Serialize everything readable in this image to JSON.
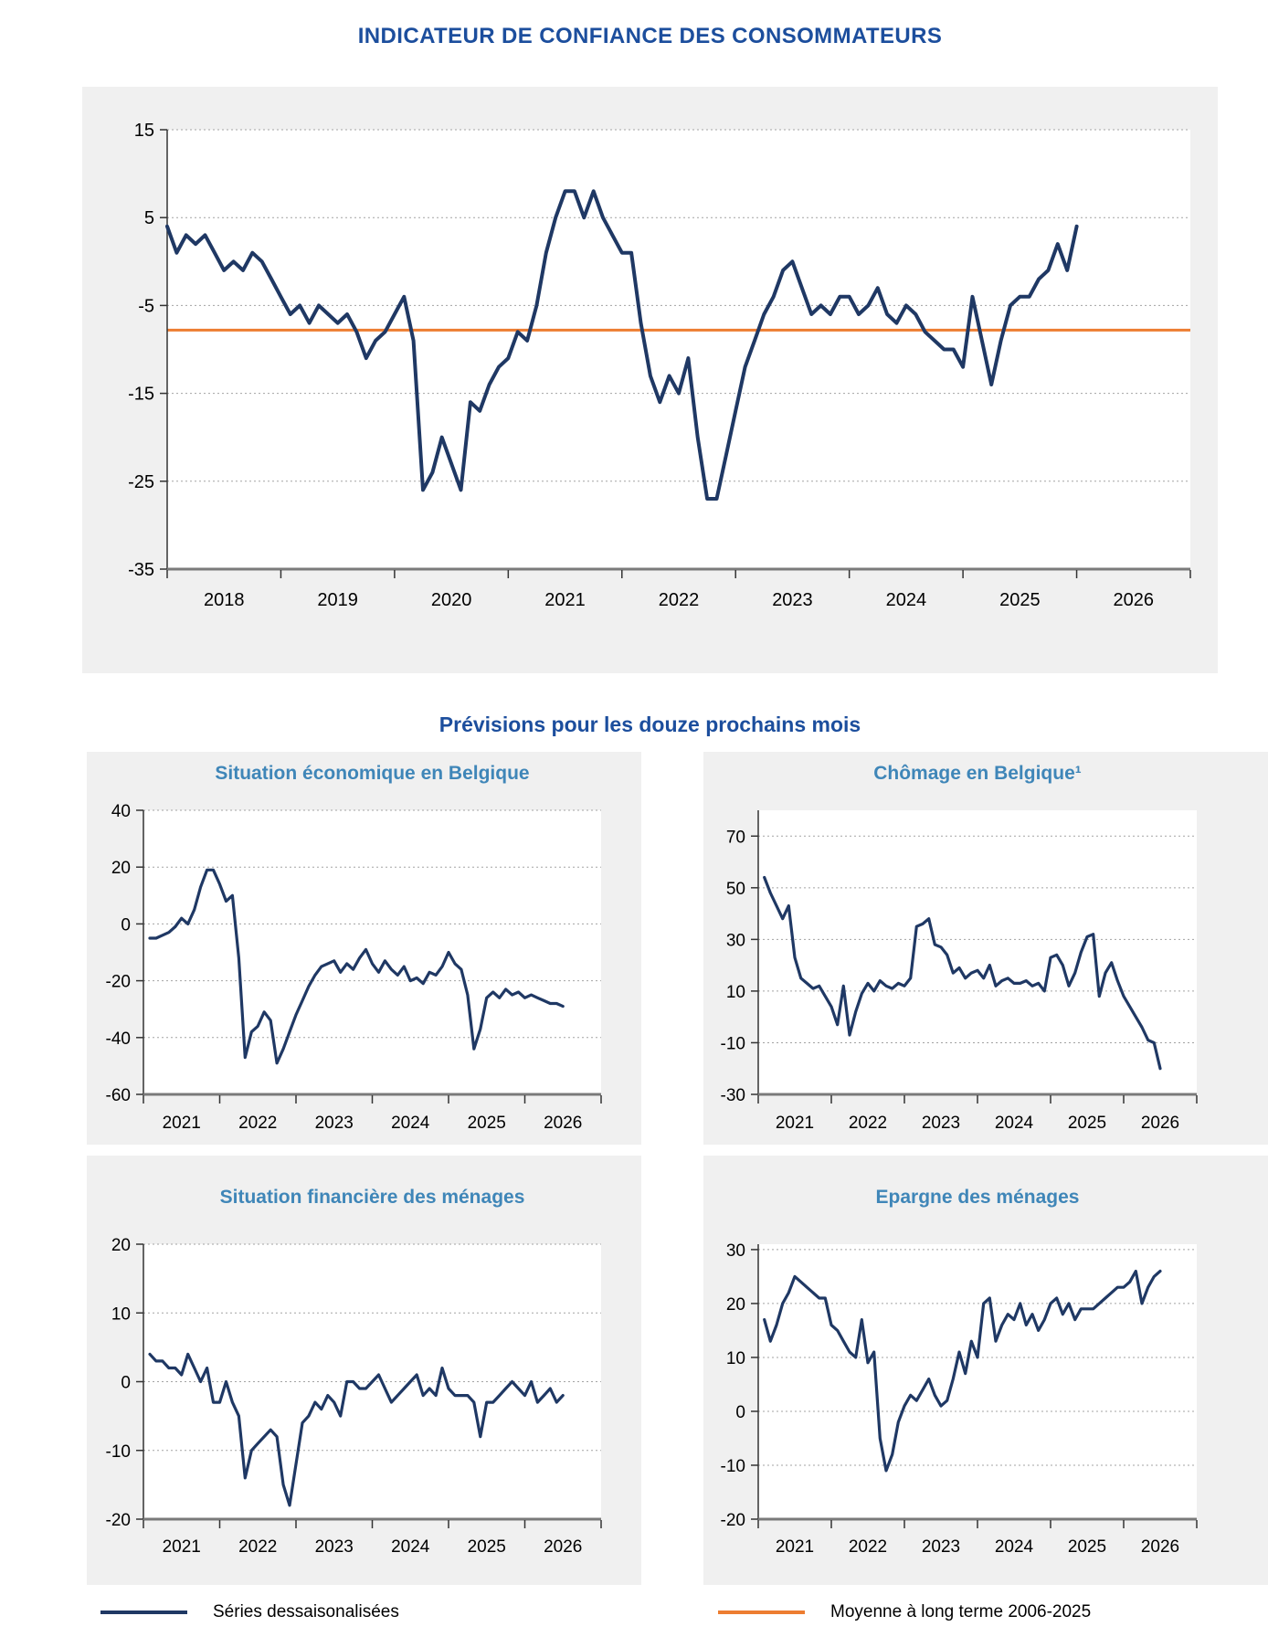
{
  "title": "INDICATEUR DE CONFIANCE DES CONSOMMATEURS",
  "subtitle": "Prévisions pour les douze prochains mois",
  "legend": {
    "series_label": "Séries dessaisonalisées",
    "average_label": "Moyenne à long terme 2006-2025"
  },
  "colors": {
    "series": "#1f3864",
    "average": "#ed7d31",
    "title_blue": "#1c4e9d",
    "subchart_title_blue": "#3f86b8",
    "panel_bg": "#f0f0f0",
    "grid": "#a3a3a3",
    "axis": "#7a7a7a",
    "tick": "#333333",
    "text": "#000000"
  },
  "chart_data": [
    {
      "id": "main",
      "type": "line",
      "title": "INDICATEUR DE CONFIANCE DES CONSOMMATEURS",
      "x_domain": [
        2018,
        2027
      ],
      "y_domain": [
        -35,
        15
      ],
      "y_ticks": [
        15,
        5,
        -5,
        -15,
        -25,
        -35
      ],
      "x_tick_positions": [
        2018,
        2019,
        2020,
        2021,
        2022,
        2023,
        2024,
        2025,
        2026,
        2027
      ],
      "x_label_positions": [
        2018.5,
        2019.5,
        2020.5,
        2021.5,
        2022.5,
        2023.5,
        2024.5,
        2025.5,
        2026.5
      ],
      "x_labels": [
        "2018",
        "2019",
        "2020",
        "2021",
        "2022",
        "2023",
        "2024",
        "2025",
        "2026"
      ],
      "grid_on": true,
      "legend_position": "bottom",
      "average_line": -7.8,
      "x_start": 2018.0,
      "x_step": 0.0833333,
      "values": [
        4,
        1,
        3,
        2,
        3,
        1,
        -1,
        0,
        -1,
        1,
        0,
        -2,
        -4,
        -6,
        -5,
        -7,
        -5,
        -6,
        -7,
        -6,
        -8,
        -11,
        -9,
        -8,
        -6,
        -4,
        -9,
        -26,
        -24,
        -20,
        -23,
        -26,
        -16,
        -17,
        -14,
        -12,
        -11,
        -8,
        -9,
        -5,
        1,
        5,
        8,
        8,
        5,
        8,
        5,
        3,
        1,
        1,
        -7,
        -13,
        -16,
        -13,
        -15,
        -11,
        -20,
        -27,
        -27,
        -22,
        -17,
        -12,
        -9,
        -6,
        -4,
        -1,
        0,
        -3,
        -6,
        -5,
        -6,
        -4,
        -4,
        -6,
        -5,
        -3,
        -6,
        -7,
        -5,
        -6,
        -8,
        -9,
        -10,
        -10,
        -12,
        -4,
        -9,
        -14,
        -9,
        -5,
        -4,
        -4,
        -2,
        -1,
        2,
        -1,
        4
      ]
    },
    {
      "id": "eco",
      "type": "line",
      "title": "Situation économique en Belgique",
      "x_domain": [
        2020.5,
        2026.5
      ],
      "y_domain": [
        -60,
        40
      ],
      "y_ticks": [
        40,
        20,
        0,
        -20,
        -40,
        -60
      ],
      "x_tick_positions": [
        2020.5,
        2021.5,
        2022.5,
        2023.5,
        2024.5,
        2025.5,
        2026.5
      ],
      "x_label_positions": [
        2021,
        2022,
        2023,
        2024,
        2025,
        2026
      ],
      "x_labels": [
        "2021",
        "2022",
        "2023",
        "2024",
        "2025",
        "2026"
      ],
      "grid_on": true,
      "x_start": 2020.5833,
      "x_step": 0.0833333,
      "values": [
        -5,
        -5,
        -4,
        -3,
        -1,
        2,
        0,
        5,
        13,
        19,
        19,
        14,
        8,
        10,
        -12,
        -47,
        -38,
        -36,
        -31,
        -34,
        -49,
        -44,
        -38,
        -32,
        -27,
        -22,
        -18,
        -15,
        -14,
        -13,
        -17,
        -14,
        -16,
        -12,
        -9,
        -14,
        -17,
        -13,
        -16,
        -18,
        -15,
        -20,
        -19,
        -21,
        -17,
        -18,
        -15,
        -10,
        -14,
        -16,
        -25,
        -44,
        -37,
        -26,
        -24,
        -26,
        -23,
        -25,
        -24,
        -26,
        -25,
        -26,
        -27,
        -28,
        -28,
        -29
      ]
    },
    {
      "id": "chomage",
      "type": "line",
      "title": "Chômage en Belgique¹",
      "x_domain": [
        2020.5,
        2026.5
      ],
      "y_domain": [
        -30,
        80
      ],
      "y_ticks": [
        70,
        50,
        30,
        10,
        -10,
        -30
      ],
      "x_tick_positions": [
        2020.5,
        2021.5,
        2022.5,
        2023.5,
        2024.5,
        2025.5,
        2026.5
      ],
      "x_label_positions": [
        2021,
        2022,
        2023,
        2024,
        2025,
        2026
      ],
      "x_labels": [
        "2021",
        "2022",
        "2023",
        "2024",
        "2025",
        "2026"
      ],
      "grid_on": true,
      "x_start": 2020.5833,
      "x_step": 0.0833333,
      "values": [
        54,
        48,
        43,
        38,
        43,
        23,
        15,
        13,
        11,
        12,
        8,
        4,
        -3,
        12,
        -7,
        2,
        9,
        13,
        10,
        14,
        12,
        11,
        13,
        12,
        15,
        35,
        36,
        38,
        28,
        27,
        24,
        17,
        19,
        15,
        17,
        18,
        15,
        20,
        12,
        14,
        15,
        13,
        13,
        14,
        12,
        13,
        10,
        23,
        24,
        20,
        12,
        17,
        25,
        31,
        32,
        8,
        17,
        21,
        14,
        8,
        4,
        0,
        -4,
        -9,
        -10,
        -20
      ]
    },
    {
      "id": "fin",
      "type": "line",
      "title": "Situation financière des ménages",
      "x_domain": [
        2020.5,
        2026.5
      ],
      "y_domain": [
        -20,
        20
      ],
      "y_ticks": [
        20,
        10,
        0,
        -10,
        -20
      ],
      "x_tick_positions": [
        2020.5,
        2021.5,
        2022.5,
        2023.5,
        2024.5,
        2025.5,
        2026.5
      ],
      "x_label_positions": [
        2021,
        2022,
        2023,
        2024,
        2025,
        2026
      ],
      "x_labels": [
        "2021",
        "2022",
        "2023",
        "2024",
        "2025",
        "2026"
      ],
      "grid_on": true,
      "x_start": 2020.5833,
      "x_step": 0.0833333,
      "values": [
        4,
        3,
        3,
        2,
        2,
        1,
        4,
        2,
        0,
        2,
        -3,
        -3,
        0,
        -3,
        -5,
        -14,
        -10,
        -9,
        -8,
        -7,
        -8,
        -15,
        -18,
        -12,
        -6,
        -5,
        -3,
        -4,
        -2,
        -3,
        -5,
        0,
        0,
        -1,
        -1,
        0,
        1,
        -1,
        -3,
        -2,
        -1,
        0,
        1,
        -2,
        -1,
        -2,
        2,
        -1,
        -2,
        -2,
        -2,
        -3,
        -8,
        -3,
        -3,
        -2,
        -1,
        0,
        -1,
        -2,
        0,
        -3,
        -2,
        -1,
        -3,
        -2
      ]
    },
    {
      "id": "epargne",
      "type": "line",
      "title": "Epargne des ménages",
      "x_domain": [
        2020.5,
        2026.5
      ],
      "y_domain": [
        -20,
        31
      ],
      "y_ticks": [
        30,
        20,
        10,
        0,
        -10,
        -20
      ],
      "x_tick_positions": [
        2020.5,
        2021.5,
        2022.5,
        2023.5,
        2024.5,
        2025.5,
        2026.5
      ],
      "x_label_positions": [
        2021,
        2022,
        2023,
        2024,
        2025,
        2026
      ],
      "x_labels": [
        "2021",
        "2022",
        "2023",
        "2024",
        "2025",
        "2026"
      ],
      "grid_on": true,
      "x_start": 2020.5833,
      "x_step": 0.0833333,
      "values": [
        17,
        13,
        16,
        20,
        22,
        25,
        24,
        23,
        22,
        21,
        21,
        16,
        15,
        13,
        11,
        10,
        17,
        9,
        11,
        -5,
        -11,
        -8,
        -2,
        1,
        3,
        2,
        4,
        6,
        3,
        1,
        2,
        6,
        11,
        7,
        13,
        10,
        20,
        21,
        13,
        16,
        18,
        17,
        20,
        16,
        18,
        15,
        17,
        20,
        21,
        18,
        20,
        17,
        19,
        19,
        19,
        20,
        21,
        22,
        23,
        23,
        24,
        26,
        20,
        23,
        25,
        26
      ]
    }
  ]
}
